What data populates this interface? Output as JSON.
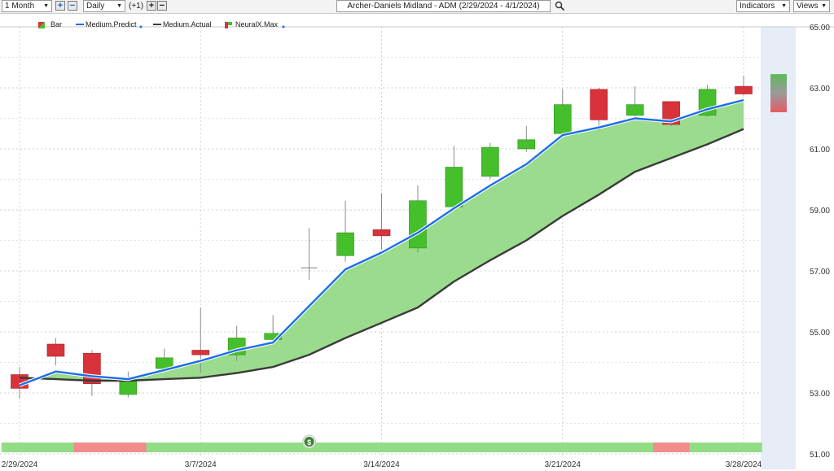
{
  "toolbar": {
    "period_value": "1 Month",
    "interval_value": "Daily",
    "offset_label": "(+1)",
    "symbol_title": "Archer-Daniels Midland - ADM (2/29/2024 - 4/1/2024)",
    "indicators_label": "Indicators",
    "views_label": "Views",
    "plus_glyph": "+",
    "minus_glyph": "−",
    "zoom_icon": "magnifier-icon"
  },
  "legend": [
    {
      "label": "Bar",
      "icon": "bar-legend-icon"
    },
    {
      "label": "Medium.Predict",
      "icon": "blue-line-legend-icon"
    },
    {
      "label": "Medium.Actual",
      "icon": "dark-line-legend-icon"
    },
    {
      "label": "NeuralX.Max",
      "icon": "neuralx-legend-icon"
    }
  ],
  "signal_marker": "$",
  "colors": {
    "up": "#45bf2b",
    "down": "#d8323a",
    "predict": "#1a6ee8",
    "actual": "#3a3a3a",
    "fill": "#9bdb8d",
    "signal_green": "#93dc86",
    "signal_red": "#f08c8c",
    "forecast_bg": "#e6edf7"
  },
  "chart_data": {
    "type": "candlestick",
    "title": "Archer-Daniels Midland - ADM (2/29/2024 - 4/1/2024)",
    "ylim": [
      51,
      65
    ],
    "y_ticks": [
      "51.00",
      "53.00",
      "55.00",
      "57.00",
      "59.00",
      "61.00",
      "63.00",
      "65.00"
    ],
    "x_tick_labels": [
      {
        "index": 0,
        "label": "2/29/2024"
      },
      {
        "index": 5,
        "label": "3/7/2024"
      },
      {
        "index": 10,
        "label": "3/14/2024"
      },
      {
        "index": 15,
        "label": "3/21/2024"
      },
      {
        "index": 20,
        "label": "3/28/2024"
      }
    ],
    "dates": [
      "2/29/2024",
      "3/1/2024",
      "3/4/2024",
      "3/5/2024",
      "3/6/2024",
      "3/7/2024",
      "3/8/2024",
      "3/11/2024",
      "3/12/2024",
      "3/13/2024",
      "3/14/2024",
      "3/15/2024",
      "3/18/2024",
      "3/19/2024",
      "3/20/2024",
      "3/21/2024",
      "3/22/2024",
      "3/25/2024",
      "3/26/2024",
      "3/27/2024",
      "3/28/2024"
    ],
    "candles": [
      {
        "open": 53.6,
        "high": 53.85,
        "low": 52.8,
        "close": 53.15
      },
      {
        "open": 54.6,
        "high": 54.8,
        "low": 53.9,
        "close": 54.2
      },
      {
        "open": 54.3,
        "high": 54.4,
        "low": 52.9,
        "close": 53.3
      },
      {
        "open": 52.95,
        "high": 53.7,
        "low": 52.85,
        "close": 53.4
      },
      {
        "open": 53.8,
        "high": 54.45,
        "low": 53.7,
        "close": 54.15
      },
      {
        "open": 54.4,
        "high": 55.8,
        "low": 53.65,
        "close": 54.25
      },
      {
        "open": 54.25,
        "high": 55.2,
        "low": 54.05,
        "close": 54.8
      },
      {
        "open": 54.75,
        "high": 55.55,
        "low": 54.6,
        "close": 54.95
      },
      {
        "open": 57.1,
        "high": 58.4,
        "low": 56.7,
        "close": 57.1
      },
      {
        "open": 57.5,
        "high": 59.3,
        "low": 57.3,
        "close": 58.25
      },
      {
        "open": 58.35,
        "high": 59.55,
        "low": 57.7,
        "close": 58.15
      },
      {
        "open": 57.75,
        "high": 59.8,
        "low": 57.6,
        "close": 59.3
      },
      {
        "open": 59.1,
        "high": 61.1,
        "low": 59.0,
        "close": 60.4
      },
      {
        "open": 60.1,
        "high": 61.2,
        "low": 60.0,
        "close": 61.05
      },
      {
        "open": 61.0,
        "high": 61.75,
        "low": 60.9,
        "close": 61.3
      },
      {
        "open": 61.5,
        "high": 62.95,
        "low": 61.4,
        "close": 62.45
      },
      {
        "open": 62.95,
        "high": 63.0,
        "low": 61.6,
        "close": 61.95
      },
      {
        "open": 62.1,
        "high": 63.05,
        "low": 62.0,
        "close": 62.45
      },
      {
        "open": 62.55,
        "high": 62.55,
        "low": 61.75,
        "close": 61.8
      },
      {
        "open": 62.1,
        "high": 63.1,
        "low": 62.05,
        "close": 62.95
      },
      {
        "open": 63.05,
        "high": 63.4,
        "low": 62.75,
        "close": 62.8
      }
    ],
    "series": [
      {
        "name": "Medium.Predict",
        "values": [
          53.25,
          53.7,
          53.55,
          53.45,
          53.75,
          54.05,
          54.4,
          54.65,
          55.85,
          57.05,
          57.6,
          58.25,
          59.05,
          59.8,
          60.5,
          61.45,
          61.7,
          62.0,
          61.9,
          62.3,
          62.6
        ]
      },
      {
        "name": "Medium.Actual",
        "values": [
          53.5,
          53.45,
          53.4,
          53.4,
          53.45,
          53.5,
          53.65,
          53.85,
          54.25,
          54.8,
          55.3,
          55.8,
          56.65,
          57.35,
          58.0,
          58.8,
          59.5,
          60.25,
          60.7,
          61.15,
          61.65
        ]
      }
    ],
    "forecast": {
      "low": 62.2,
      "high": 63.45
    },
    "signal_bar": [
      "green",
      "green",
      "red",
      "red",
      "green",
      "green",
      "green",
      "green",
      "green",
      "green",
      "green",
      "green",
      "green",
      "green",
      "green",
      "green",
      "green",
      "green",
      "red",
      "green",
      "green"
    ],
    "signal_marker_index": 8
  }
}
